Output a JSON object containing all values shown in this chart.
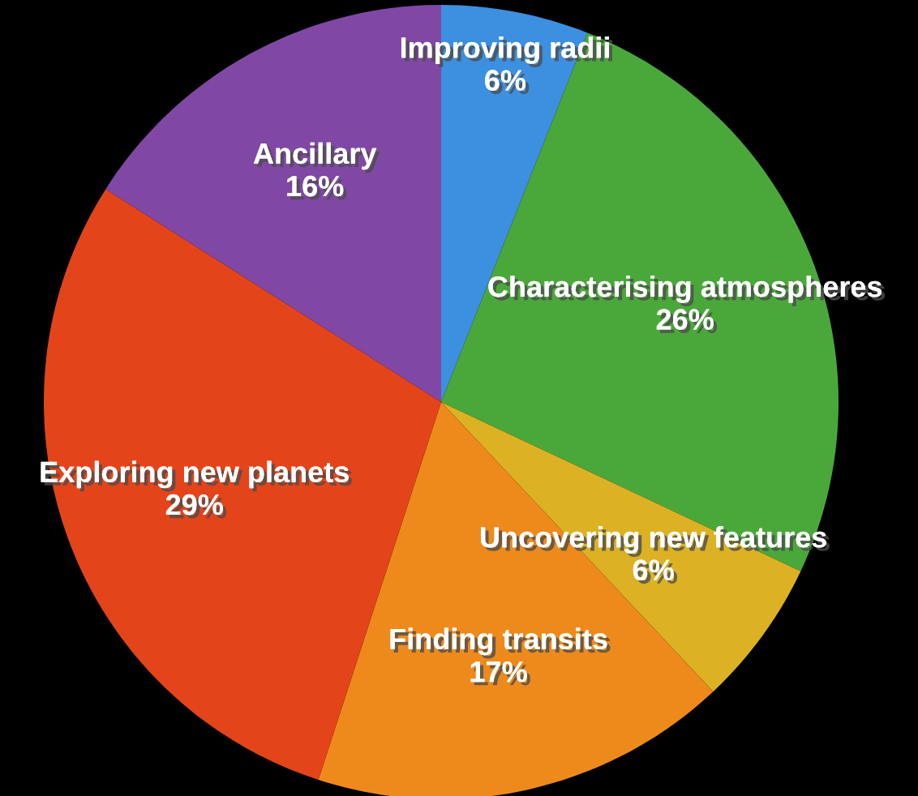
{
  "chart_data": {
    "type": "pie",
    "categories": [
      "Improving radii",
      "Characterising atmospheres",
      "Uncovering new features",
      "Finding transits",
      "Exploring new planets",
      "Ancillary"
    ],
    "values": [
      6,
      26,
      6,
      17,
      29,
      16
    ],
    "value_labels": [
      "6%",
      "26%",
      "6%",
      "17%",
      "29%",
      "16%"
    ],
    "colors": [
      "#3d8fe0",
      "#4aa83a",
      "#dcb224",
      "#ee8a1c",
      "#e4441a",
      "#8048a4"
    ],
    "legend": false
  }
}
